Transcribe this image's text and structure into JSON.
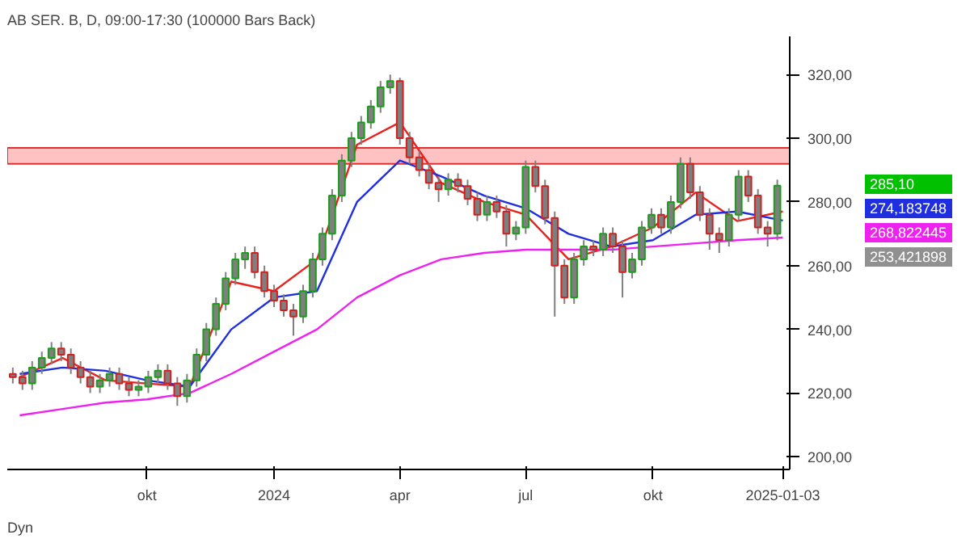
{
  "chart_data": {
    "type": "candlestick",
    "title": "AB SER. B, D, 09:00-17:30 (100000 Bars Back)",
    "color": "#7f7f7f",
    "x": [
      "2023-06-26",
      "2023-07-03",
      "2023-07-10",
      "2023-07-17",
      "2023-07-24",
      "2023-07-31",
      "2023-08-07",
      "2023-08-14",
      "2023-08-21",
      "2023-08-28",
      "2023-09-04",
      "2023-09-11",
      "2023-09-18",
      "2023-09-25",
      "2023-10-02",
      "2023-10-09",
      "2023-10-16",
      "2023-10-23",
      "2023-10-30",
      "2023-11-06",
      "2023-11-13",
      "2023-11-20",
      "2023-11-27",
      "2023-12-04",
      "2023-12-11",
      "2023-12-18",
      "2023-12-25",
      "2024-01-01",
      "2024-01-08",
      "2024-01-15",
      "2024-01-22",
      "2024-01-29",
      "2024-02-05",
      "2024-02-12",
      "2024-02-19",
      "2024-02-26",
      "2024-03-04",
      "2024-03-11",
      "2024-03-18",
      "2024-03-25",
      "2024-04-01",
      "2024-04-08",
      "2024-04-15",
      "2024-04-22",
      "2024-04-29",
      "2024-05-06",
      "2024-05-13",
      "2024-05-20",
      "2024-05-27",
      "2024-06-03",
      "2024-06-10",
      "2024-06-17",
      "2024-06-24",
      "2024-07-01",
      "2024-07-08",
      "2024-07-15",
      "2024-07-22",
      "2024-07-29",
      "2024-08-05",
      "2024-08-12",
      "2024-08-19",
      "2024-08-26",
      "2024-09-02",
      "2024-09-09",
      "2024-09-16",
      "2024-09-23",
      "2024-09-30",
      "2024-10-07",
      "2024-10-14",
      "2024-10-21",
      "2024-10-28",
      "2024-11-04",
      "2024-11-11",
      "2024-11-18",
      "2024-11-25",
      "2024-12-02",
      "2024-12-09",
      "2024-12-16",
      "2024-12-23",
      "2024-12-30"
    ],
    "ohlc": [
      [
        226,
        228,
        223,
        225
      ],
      [
        225,
        227,
        221,
        223
      ],
      [
        223,
        230,
        221,
        228
      ],
      [
        228,
        233,
        226,
        231
      ],
      [
        231,
        236,
        229,
        234
      ],
      [
        234,
        236,
        230,
        232
      ],
      [
        232,
        234,
        226,
        228
      ],
      [
        228,
        230,
        223,
        225
      ],
      [
        225,
        227,
        220,
        222
      ],
      [
        222,
        226,
        220,
        224
      ],
      [
        224,
        228,
        222,
        226
      ],
      [
        226,
        228,
        221,
        223
      ],
      [
        223,
        225,
        219,
        221
      ],
      [
        221,
        224,
        219,
        222
      ],
      [
        222,
        227,
        220,
        225
      ],
      [
        225,
        229,
        223,
        227
      ],
      [
        227,
        229,
        221,
        223
      ],
      [
        223,
        225,
        216,
        219
      ],
      [
        219,
        226,
        217,
        224
      ],
      [
        224,
        234,
        222,
        232
      ],
      [
        232,
        242,
        230,
        240
      ],
      [
        240,
        250,
        238,
        248
      ],
      [
        248,
        258,
        246,
        256
      ],
      [
        256,
        264,
        254,
        262
      ],
      [
        262,
        266,
        259,
        264
      ],
      [
        264,
        266,
        256,
        258
      ],
      [
        258,
        260,
        250,
        252
      ],
      [
        252,
        254,
        247,
        249
      ],
      [
        249,
        251,
        244,
        246
      ],
      [
        246,
        248,
        238,
        244
      ],
      [
        244,
        254,
        242,
        252
      ],
      [
        252,
        264,
        250,
        262
      ],
      [
        262,
        272,
        260,
        270
      ],
      [
        270,
        284,
        268,
        282
      ],
      [
        282,
        295,
        280,
        293
      ],
      [
        293,
        302,
        291,
        300
      ],
      [
        300,
        307,
        298,
        305
      ],
      [
        305,
        312,
        303,
        310
      ],
      [
        310,
        318,
        308,
        316
      ],
      [
        316,
        320,
        314,
        318
      ],
      [
        318,
        319,
        298,
        300
      ],
      [
        300,
        302,
        292,
        294
      ],
      [
        294,
        296,
        288,
        290
      ],
      [
        290,
        292,
        284,
        286
      ],
      [
        286,
        288,
        280,
        284
      ],
      [
        284,
        289,
        282,
        287
      ],
      [
        287,
        289,
        283,
        285
      ],
      [
        285,
        287,
        279,
        281
      ],
      [
        281,
        283,
        274,
        276
      ],
      [
        276,
        282,
        274,
        280
      ],
      [
        280,
        282,
        275,
        277
      ],
      [
        277,
        279,
        266,
        270
      ],
      [
        270,
        274,
        268,
        272
      ],
      [
        272,
        293,
        270,
        291
      ],
      [
        291,
        293,
        283,
        285
      ],
      [
        285,
        287,
        273,
        275
      ],
      [
        275,
        277,
        244,
        260
      ],
      [
        260,
        262,
        248,
        250
      ],
      [
        250,
        264,
        248,
        262
      ],
      [
        262,
        268,
        260,
        266
      ],
      [
        266,
        268,
        263,
        265
      ],
      [
        265,
        272,
        263,
        270
      ],
      [
        270,
        272,
        264,
        266
      ],
      [
        266,
        268,
        250,
        258
      ],
      [
        258,
        264,
        256,
        262
      ],
      [
        262,
        274,
        260,
        272
      ],
      [
        272,
        278,
        270,
        276
      ],
      [
        276,
        278,
        270,
        272
      ],
      [
        272,
        282,
        270,
        280
      ],
      [
        280,
        294,
        278,
        292
      ],
      [
        292,
        294,
        281,
        283
      ],
      [
        283,
        285,
        274,
        276
      ],
      [
        276,
        278,
        265,
        270
      ],
      [
        270,
        272,
        264,
        268
      ],
      [
        268,
        278,
        266,
        276
      ],
      [
        276,
        290,
        274,
        288
      ],
      [
        288,
        290,
        280,
        282
      ],
      [
        282,
        284,
        270,
        272
      ],
      [
        272,
        274,
        266,
        270
      ],
      [
        270,
        287,
        268,
        285.1
      ]
    ],
    "series": [
      {
        "type": "line",
        "color": "#e8231f",
        "x": [
          "2023-07-01",
          "2023-08-01",
          "2023-09-01",
          "2023-10-01",
          "2023-11-01",
          "2023-12-01",
          "2024-01-01",
          "2024-02-01",
          "2024-03-01",
          "2024-04-01",
          "2024-05-01",
          "2024-06-01",
          "2024-07-01",
          "2024-08-01",
          "2024-09-01",
          "2024-10-01",
          "2024-11-01",
          "2024-12-01",
          "2025-01-03"
        ],
        "values": [
          225,
          231,
          224,
          223,
          222,
          255,
          252,
          262,
          298,
          305,
          286,
          280,
          276,
          262,
          266,
          272,
          283,
          274,
          277
        ]
      },
      {
        "type": "line",
        "color": "#1f2fe0",
        "x": [
          "2023-07-01",
          "2023-08-01",
          "2023-09-01",
          "2023-10-01",
          "2023-11-01",
          "2023-12-01",
          "2024-01-01",
          "2024-02-01",
          "2024-03-01",
          "2024-04-01",
          "2024-05-01",
          "2024-06-01",
          "2024-07-01",
          "2024-08-01",
          "2024-09-01",
          "2024-10-01",
          "2024-11-01",
          "2024-12-01",
          "2025-01-03"
        ],
        "values": [
          226,
          228,
          227,
          224,
          222,
          240,
          250,
          252,
          280,
          293,
          288,
          282,
          278,
          270,
          266,
          268,
          276,
          277,
          274.18
        ]
      },
      {
        "type": "line",
        "color": "#ee22ee",
        "x": [
          "2023-07-01",
          "2023-08-01",
          "2023-09-01",
          "2023-10-01",
          "2023-11-01",
          "2023-12-01",
          "2024-01-01",
          "2024-02-01",
          "2024-03-01",
          "2024-04-01",
          "2024-05-01",
          "2024-06-01",
          "2024-07-01",
          "2024-08-01",
          "2024-09-01",
          "2024-10-01",
          "2024-11-01",
          "2024-12-01",
          "2025-01-03"
        ],
        "values": [
          213,
          215,
          217,
          218,
          220,
          226,
          233,
          240,
          250,
          257,
          262,
          264,
          265,
          265,
          265,
          266,
          267,
          268,
          268.82
        ]
      }
    ],
    "xlim": [
      "2023-06-22",
      "2025-01-08"
    ],
    "xticks": [
      {
        "value": "2023-10-01",
        "label": "okt"
      },
      {
        "value": "2024-01-01",
        "label": "2024"
      },
      {
        "value": "2024-04-01",
        "label": "apr"
      },
      {
        "value": "2024-07-01",
        "label": "jul"
      },
      {
        "value": "2024-10-01",
        "label": "okt"
      },
      {
        "value": "2025-01-03",
        "label": "2025-01-03"
      }
    ],
    "ylim": [
      196,
      332
    ],
    "yticks": [
      {
        "value": 200,
        "label": "200,00"
      },
      {
        "value": 220,
        "label": "220,00"
      },
      {
        "value": 240,
        "label": "240,00"
      },
      {
        "value": 260,
        "label": "260,00"
      },
      {
        "value": 280,
        "label": "280,00"
      },
      {
        "value": 300,
        "label": "300,00"
      },
      {
        "value": 320,
        "label": "320,00"
      }
    ],
    "bands": [
      {
        "axis": "y",
        "from": 292,
        "to": 297,
        "color": "#ffb3b3"
      }
    ],
    "annotations": [
      "285,10",
      "274,183748",
      "268,822445",
      "253,421898",
      "Dyn"
    ],
    "grid": false
  }
}
